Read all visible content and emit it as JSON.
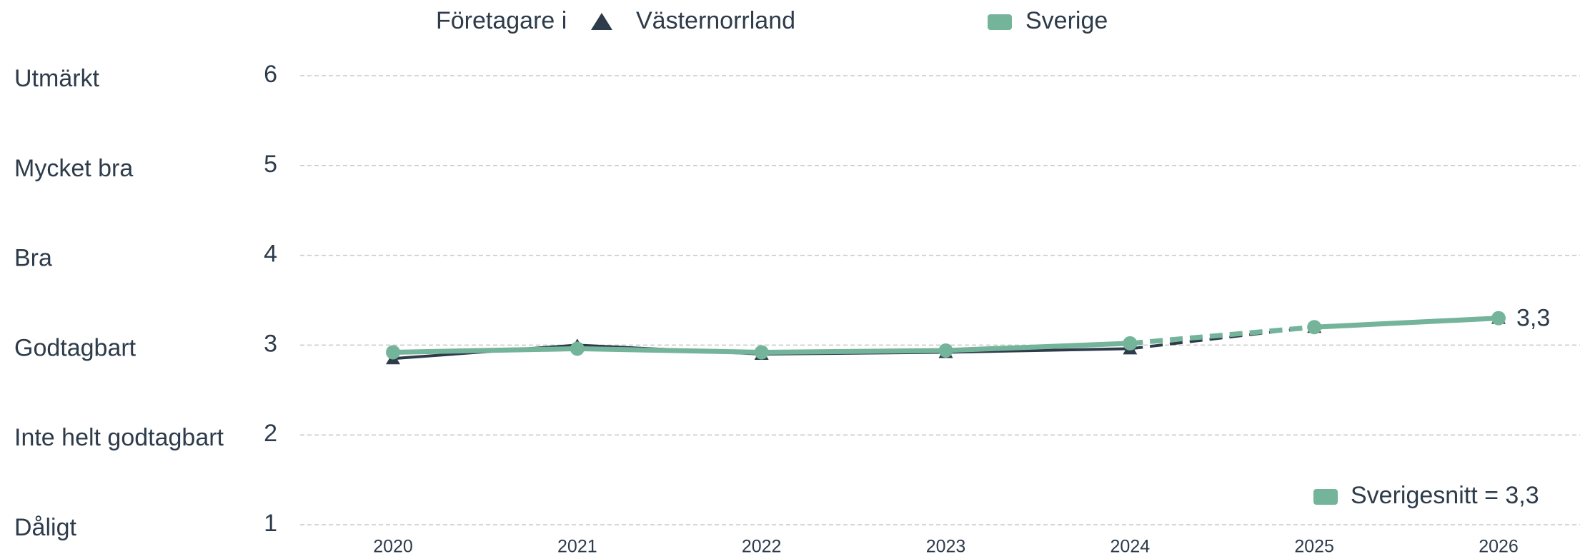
{
  "chart_data": {
    "type": "line",
    "legend_title": "Företagare i",
    "categories": [
      "2020",
      "2021",
      "2022",
      "2023",
      "2024",
      "2025",
      "2026"
    ],
    "series": [
      {
        "name": "Västernorrland",
        "color": "#2d3b4a",
        "marker": "triangle",
        "values": [
          2.85,
          3.0,
          2.9,
          2.92,
          2.96,
          3.2,
          3.3
        ]
      },
      {
        "name": "Sverige",
        "color": "#74b49b",
        "marker": "circle",
        "values": [
          2.92,
          2.96,
          2.92,
          2.94,
          3.02,
          3.2,
          3.3
        ],
        "end_label": "3,3"
      }
    ],
    "dashed_segment": {
      "from": "2024",
      "to": "2025"
    },
    "ylim": [
      1,
      6
    ],
    "yticks": [
      1,
      2,
      3,
      4,
      5,
      6
    ],
    "ytick_names": [
      "Dåligt",
      "Inte helt godtagbart",
      "Godtagbart",
      "Bra",
      "Mycket bra",
      "Utmärkt"
    ],
    "grid": true,
    "annotation": "Sverigesnitt = 3,3"
  }
}
